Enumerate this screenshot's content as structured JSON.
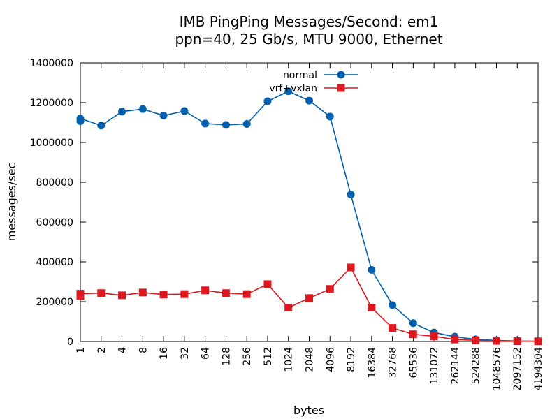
{
  "chart_data": {
    "type": "line",
    "title": "IMB PingPing Messages/Second: em1",
    "subtitle": "ppn=40, 25 Gb/s, MTU 9000, Ethernet",
    "xlabel": "bytes",
    "ylabel": "messages/sec",
    "ylim": [
      0,
      1400000
    ],
    "yticks": [
      "0",
      "200000",
      "400000",
      "600000",
      "800000",
      "1000000",
      "1200000",
      "1400000"
    ],
    "categories": [
      "1",
      "2",
      "4",
      "8",
      "16",
      "32",
      "64",
      "128",
      "256",
      "512",
      "1024",
      "2048",
      "4096",
      "8192",
      "16384",
      "32768",
      "65536",
      "131072",
      "262144",
      "524288",
      "1048576",
      "2097152",
      "4194304"
    ],
    "grid": false,
    "legend_position": "top-right",
    "series": [
      {
        "name": "normal",
        "color": "#0060ad",
        "marker": "circle",
        "values": [
          1120000,
          1085000,
          1155000,
          1168000,
          1135000,
          1158000,
          1095000,
          1088000,
          1093000,
          1207000,
          1257000,
          1210000,
          1130000,
          738000,
          360000,
          183000,
          92000,
          45000,
          24000,
          11000,
          5000,
          2500,
          1200
        ],
        "extra_points": [
          {
            "category": "1",
            "value": 1107000
          }
        ]
      },
      {
        "name": "vrf+vxlan",
        "color": "#dd181f",
        "marker": "square",
        "values": [
          240000,
          243000,
          232000,
          246000,
          236000,
          238000,
          257000,
          243000,
          238000,
          288000,
          170000,
          218000,
          264000,
          372000,
          170000,
          68000,
          36000,
          26000,
          10000,
          6000,
          3000,
          1500,
          700
        ],
        "extra_points": [
          {
            "category": "1",
            "value": 229000
          }
        ]
      }
    ]
  }
}
